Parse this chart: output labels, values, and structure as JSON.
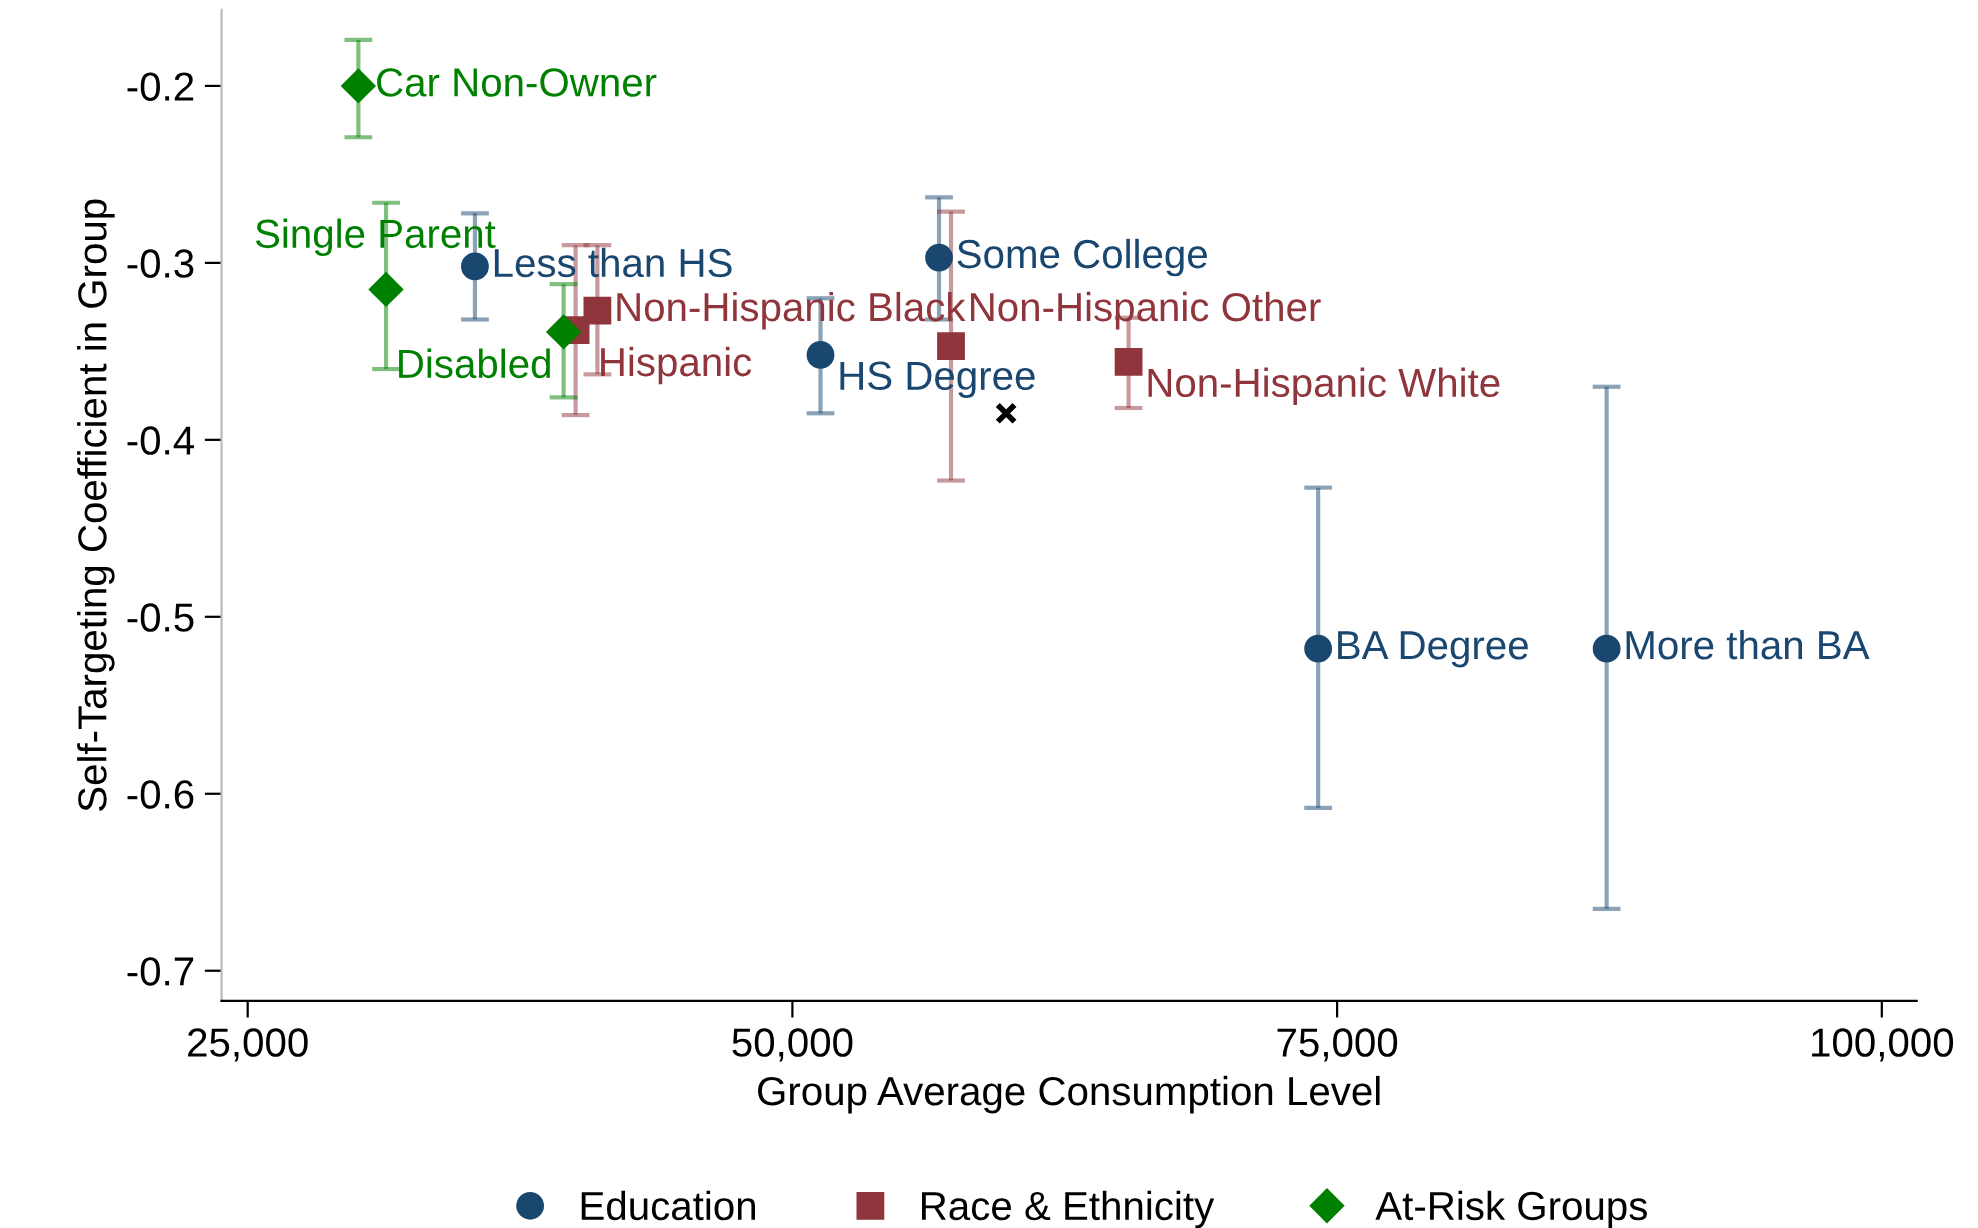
{
  "chart_data": {
    "type": "scatter",
    "xlabel": "Group Average Consumption Level",
    "ylabel": "Self-Targeting Coefficient in Group",
    "xlim": [
      23800,
      101600
    ],
    "ylim": [
      -0.717,
      -0.157
    ],
    "xticks": [
      {
        "value": 25000,
        "label": "25,000"
      },
      {
        "value": 50000,
        "label": "50,000"
      },
      {
        "value": 75000,
        "label": "75,000"
      },
      {
        "value": 100000,
        "label": "100,000"
      }
    ],
    "yticks": [
      -0.7,
      -0.6,
      -0.5,
      -0.4,
      -0.3,
      -0.2
    ],
    "grid": false,
    "legend": "bottom",
    "series": [
      {
        "name": "Education",
        "color": "#1a476f",
        "marker": "circle",
        "x": [
          35430,
          51290,
          56730,
          74130,
          87370
        ],
        "values": [
          -0.302,
          -0.352,
          -0.297,
          -0.518,
          -0.518
        ],
        "errors": [
          [
            -0.332,
            -0.272
          ],
          [
            -0.385,
            -0.32
          ],
          [
            -0.332,
            -0.263
          ],
          [
            -0.608,
            -0.427
          ],
          [
            -0.665,
            -0.37
          ]
        ],
        "value_labels": [
          "Less than HS",
          "HS Degree",
          "Some College",
          "BA Degree",
          "More than BA"
        ]
      },
      {
        "name": "Race & Ethnicity",
        "color": "#90353b",
        "marker": "square",
        "x": [
          40050,
          41050,
          57280,
          65430
        ],
        "values": [
          -0.338,
          -0.327,
          -0.347,
          -0.356
        ],
        "errors": [
          [
            -0.386,
            -0.29
          ],
          [
            -0.363,
            -0.29
          ],
          [
            -0.423,
            -0.271
          ],
          [
            -0.382,
            -0.331
          ]
        ],
        "value_labels": [
          "Hispanic",
          "Non-Hispanic Black",
          "Non-Hispanic Other",
          "Non-Hispanic White"
        ]
      },
      {
        "name": "At-Risk Groups",
        "color": "#008000",
        "marker": "diamond",
        "x": [
          30080,
          31350,
          39500
        ],
        "values": [
          -0.2,
          -0.315,
          -0.339
        ],
        "errors": [
          [
            -0.229,
            -0.174
          ],
          [
            -0.36,
            -0.266
          ],
          [
            -0.376,
            -0.312
          ]
        ],
        "value_labels": [
          "Car Non-Owner",
          "Single Parent",
          "Disabled"
        ]
      },
      {
        "color": "#000000",
        "marker": "cross",
        "x": [
          59810
        ],
        "values": [
          -0.385
        ]
      }
    ]
  }
}
